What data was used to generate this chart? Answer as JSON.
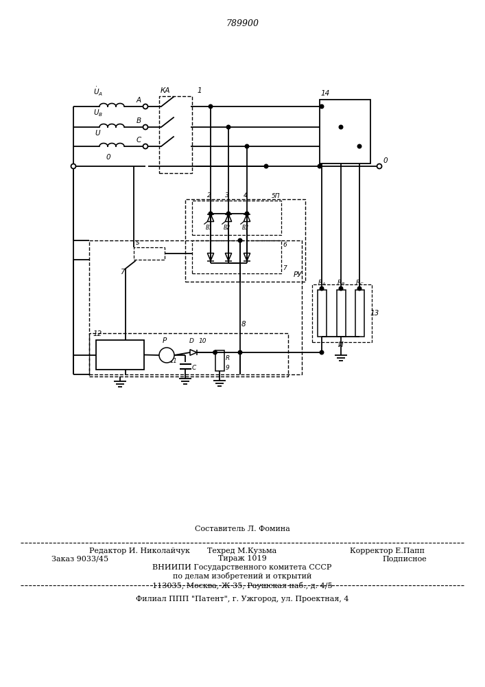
{
  "patent_number": "789900",
  "bg_color": "#ffffff",
  "footer_line1": "Составитель Л. Фомина",
  "footer_line2a": "Редактор И. Николайчук",
  "footer_line2b": "Техред М.Кузьма",
  "footer_line2c": "Корректор Е.Папп",
  "footer_line3a": "Заказ 9033/45",
  "footer_line3b": "Тираж 1019",
  "footer_line3c": "Подписное",
  "footer_line4": "ВНИИПИ Государственного комитета СССР",
  "footer_line5": "по делам изобретений и открытий",
  "footer_line6": "113035, Москва, Ж-35, Раушская наб., д. 4/5",
  "footer_line7": "Филиал ППП \"Патент\", г. Ужгород, ул. Проектная, 4"
}
